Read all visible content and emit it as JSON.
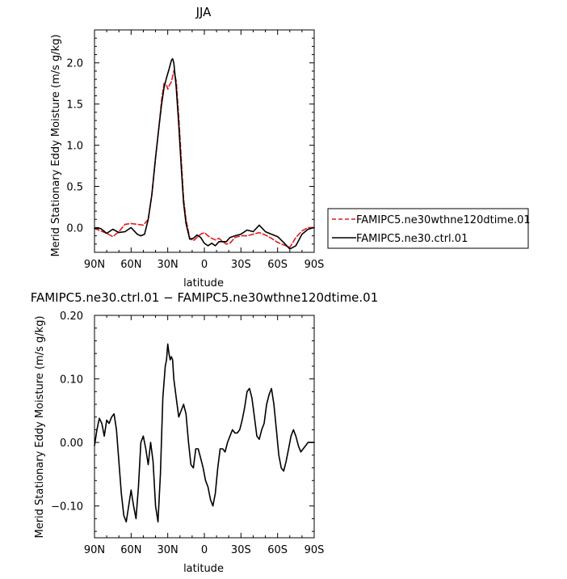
{
  "chart_data": [
    {
      "type": "line",
      "title": "JJA",
      "xlabel": "latitude",
      "ylabel": "Merid Stationary Eddy Moisture (m/s g/kg)",
      "x_tick_labels": [
        "90N",
        "60N",
        "30N",
        "0",
        "30S",
        "60S",
        "90S"
      ],
      "y_tick_labels": [
        "0.0",
        "0.5",
        "1.0",
        "1.5",
        "2.0"
      ],
      "xlim": [
        90,
        -90
      ],
      "ylim": [
        -0.3,
        2.4
      ],
      "legend_position": "right",
      "series": [
        {
          "name": "FAMIPC5.ne30wthne120dtime.01",
          "color": "#e41a1c",
          "dash": "dashed",
          "x": [
            90,
            85,
            80,
            75,
            70,
            65,
            60,
            55,
            50,
            46,
            43,
            40,
            37,
            35,
            33,
            31,
            30,
            29,
            27,
            25,
            23,
            21,
            19,
            17,
            15,
            12,
            9,
            6,
            3,
            0,
            -3,
            -6,
            -9,
            -12,
            -15,
            -18,
            -21,
            -25,
            -30,
            -35,
            -40,
            -45,
            -50,
            -55,
            -60,
            -65,
            -70,
            -75,
            -80,
            -85,
            -90
          ],
          "y": [
            -0.01,
            -0.04,
            -0.07,
            -0.11,
            -0.05,
            0.04,
            0.05,
            0.04,
            0.03,
            0.1,
            0.4,
            0.85,
            1.25,
            1.55,
            1.75,
            1.73,
            1.68,
            1.72,
            1.77,
            1.9,
            1.78,
            1.35,
            0.85,
            0.35,
            0.1,
            -0.13,
            -0.16,
            -0.12,
            -0.08,
            -0.06,
            -0.1,
            -0.13,
            -0.15,
            -0.13,
            -0.17,
            -0.2,
            -0.19,
            -0.12,
            -0.1,
            -0.1,
            -0.08,
            -0.06,
            -0.09,
            -0.13,
            -0.18,
            -0.21,
            -0.24,
            -0.12,
            -0.04,
            0.0,
            0.0
          ]
        },
        {
          "name": "FAMIPC5.ne30.ctrl.01",
          "color": "#000000",
          "dash": "solid",
          "x": [
            90,
            85,
            80,
            75,
            70,
            65,
            60,
            55,
            52,
            49,
            46,
            43,
            40,
            37,
            35,
            33,
            31,
            29,
            27,
            26,
            25,
            23,
            21,
            19,
            17,
            15,
            12,
            9,
            6,
            3,
            0,
            -3,
            -6,
            -9,
            -12,
            -15,
            -18,
            -21,
            -25,
            -30,
            -35,
            -40,
            -45,
            -50,
            -55,
            -60,
            -65,
            -70,
            -75,
            -80,
            -85,
            -90
          ],
          "y": [
            -0.01,
            -0.01,
            -0.07,
            -0.02,
            -0.06,
            -0.05,
            0.0,
            -0.08,
            -0.1,
            -0.08,
            0.1,
            0.4,
            0.85,
            1.25,
            1.5,
            1.7,
            1.82,
            1.92,
            2.03,
            2.05,
            2.0,
            1.7,
            1.25,
            0.75,
            0.3,
            0.05,
            -0.14,
            -0.13,
            -0.09,
            -0.12,
            -0.19,
            -0.22,
            -0.19,
            -0.22,
            -0.17,
            -0.17,
            -0.17,
            -0.12,
            -0.1,
            -0.08,
            -0.03,
            -0.05,
            0.03,
            -0.05,
            -0.08,
            -0.11,
            -0.18,
            -0.26,
            -0.22,
            -0.08,
            -0.02,
            0.0
          ]
        }
      ]
    },
    {
      "type": "line",
      "title": "FAMIPC5.ne30.ctrl.01 − FAMIPC5.ne30wthne120dtime.01",
      "xlabel": "latitude",
      "ylabel": "Merid Stationary Eddy Moisture (m/s g/kg)",
      "x_tick_labels": [
        "90N",
        "60N",
        "30N",
        "0",
        "30S",
        "60S",
        "90S"
      ],
      "y_tick_labels": [
        "−0.10",
        "0.00",
        "0.10",
        "0.20"
      ],
      "xlim": [
        90,
        -90
      ],
      "ylim": [
        -0.15,
        0.2
      ],
      "series": [
        {
          "color": "#000000",
          "dash": "solid",
          "x": [
            90,
            88,
            86,
            84,
            82,
            80,
            78,
            76,
            74,
            72,
            70,
            68,
            66,
            64,
            62,
            60,
            58,
            56,
            54,
            52,
            50,
            48,
            46,
            44,
            42,
            40,
            38,
            36,
            34,
            32,
            31,
            30,
            29,
            28,
            27,
            26,
            25,
            23,
            21,
            19,
            17,
            15,
            13,
            11,
            9,
            7,
            5,
            3,
            1,
            -1,
            -3,
            -5,
            -7,
            -9,
            -11,
            -13,
            -15,
            -17,
            -19,
            -21,
            -23,
            -25,
            -27,
            -29,
            -31,
            -33,
            -35,
            -37,
            -39,
            -41,
            -43,
            -45,
            -47,
            -49,
            -51,
            -53,
            -55,
            -57,
            -59,
            -61,
            -63,
            -65,
            -67,
            -69,
            -71,
            -73,
            -75,
            -77,
            -79,
            -81,
            -83,
            -85,
            -87,
            -89,
            -90
          ],
          "y": [
            -0.005,
            0.02,
            0.038,
            0.03,
            0.01,
            0.035,
            0.03,
            0.04,
            0.045,
            0.02,
            -0.03,
            -0.08,
            -0.115,
            -0.125,
            -0.1,
            -0.075,
            -0.1,
            -0.12,
            -0.07,
            0.0,
            0.01,
            -0.01,
            -0.035,
            0.0,
            -0.03,
            -0.1,
            -0.125,
            -0.05,
            0.07,
            0.12,
            0.13,
            0.155,
            0.14,
            0.13,
            0.135,
            0.13,
            0.1,
            0.07,
            0.04,
            0.05,
            0.06,
            0.045,
            0.0,
            -0.035,
            -0.04,
            -0.01,
            -0.01,
            -0.025,
            -0.04,
            -0.06,
            -0.07,
            -0.09,
            -0.1,
            -0.08,
            -0.04,
            -0.01,
            -0.01,
            -0.015,
            0.0,
            0.01,
            0.02,
            0.015,
            0.015,
            0.02,
            0.035,
            0.055,
            0.08,
            0.085,
            0.07,
            0.04,
            0.01,
            0.005,
            0.02,
            0.03,
            0.06,
            0.075,
            0.085,
            0.06,
            0.02,
            -0.02,
            -0.04,
            -0.045,
            -0.03,
            -0.01,
            0.01,
            0.02,
            0.01,
            -0.005,
            -0.015,
            -0.01,
            -0.005,
            0.0,
            0.0,
            0.0,
            0.0
          ]
        }
      ]
    }
  ]
}
